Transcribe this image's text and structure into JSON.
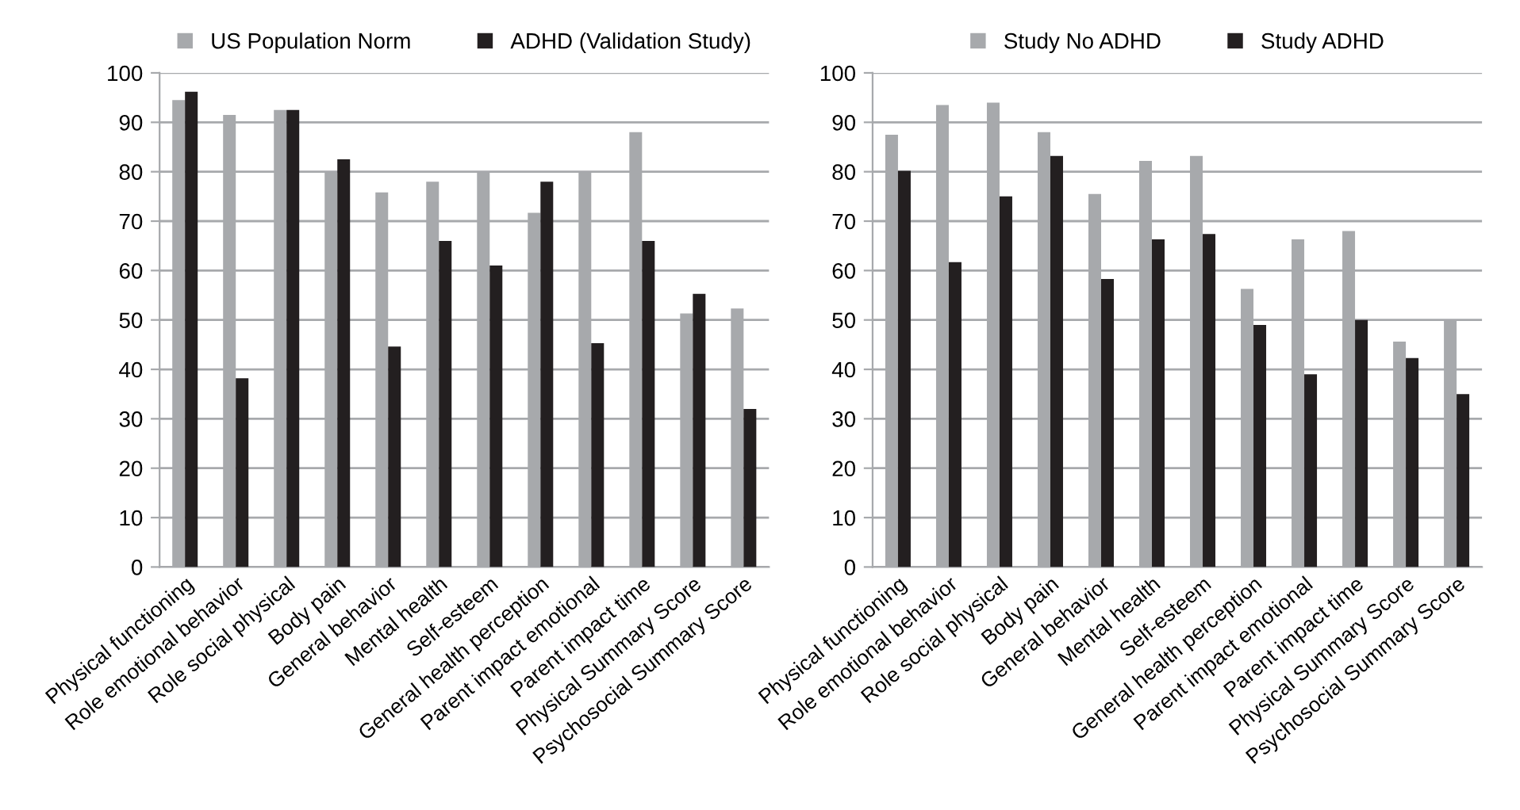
{
  "chart_data": [
    {
      "type": "bar",
      "categories": [
        "Physical functioning",
        "Role emotional behavior",
        "Role social physical",
        "Body pain",
        "General behavior",
        "Mental health",
        "Self-esteem",
        "General health perception",
        "Parent impact emotional",
        "Parent impact time",
        "Physical Summary Score",
        "Psychosocial Summary Score"
      ],
      "series": [
        {
          "name": "US Population Norm",
          "color": "#a7a9ac",
          "values": [
            94.5,
            91.5,
            92.5,
            80,
            75.8,
            78,
            80,
            71.7,
            80,
            88,
            51.3,
            52.3
          ]
        },
        {
          "name": "ADHD (Validation Study)",
          "color": "#231f20",
          "values": [
            96.2,
            38.2,
            92.5,
            82.5,
            44.6,
            66,
            61,
            78,
            45.3,
            66,
            55.3,
            32
          ]
        }
      ],
      "ylim": [
        0,
        100
      ],
      "yticks": [
        0,
        10,
        20,
        30,
        40,
        50,
        60,
        70,
        80,
        90,
        100
      ],
      "grid": "y",
      "legend": "top"
    },
    {
      "type": "bar",
      "categories": [
        "Physical functioning",
        "Role emotional behavior",
        "Role social physical",
        "Body pain",
        "General behavior",
        "Mental health",
        "Self-esteem",
        "General health perception",
        "Parent impact emotional",
        "Parent impact time",
        "Physical Summary Score",
        "Psychosocial Summary Score"
      ],
      "series": [
        {
          "name": "Study No ADHD",
          "color": "#a7a9ac",
          "values": [
            87.5,
            93.5,
            94,
            88,
            75.5,
            82.2,
            83.2,
            56.3,
            66.3,
            68,
            45.6,
            50
          ]
        },
        {
          "name": "Study ADHD",
          "color": "#231f20",
          "values": [
            80.2,
            61.7,
            75,
            83.2,
            58.3,
            66.3,
            67.4,
            49,
            39,
            50,
            42.3,
            35
          ]
        }
      ],
      "ylim": [
        0,
        100
      ],
      "yticks": [
        0,
        10,
        20,
        30,
        40,
        50,
        60,
        70,
        80,
        90,
        100
      ],
      "grid": "y",
      "legend": "top"
    }
  ]
}
